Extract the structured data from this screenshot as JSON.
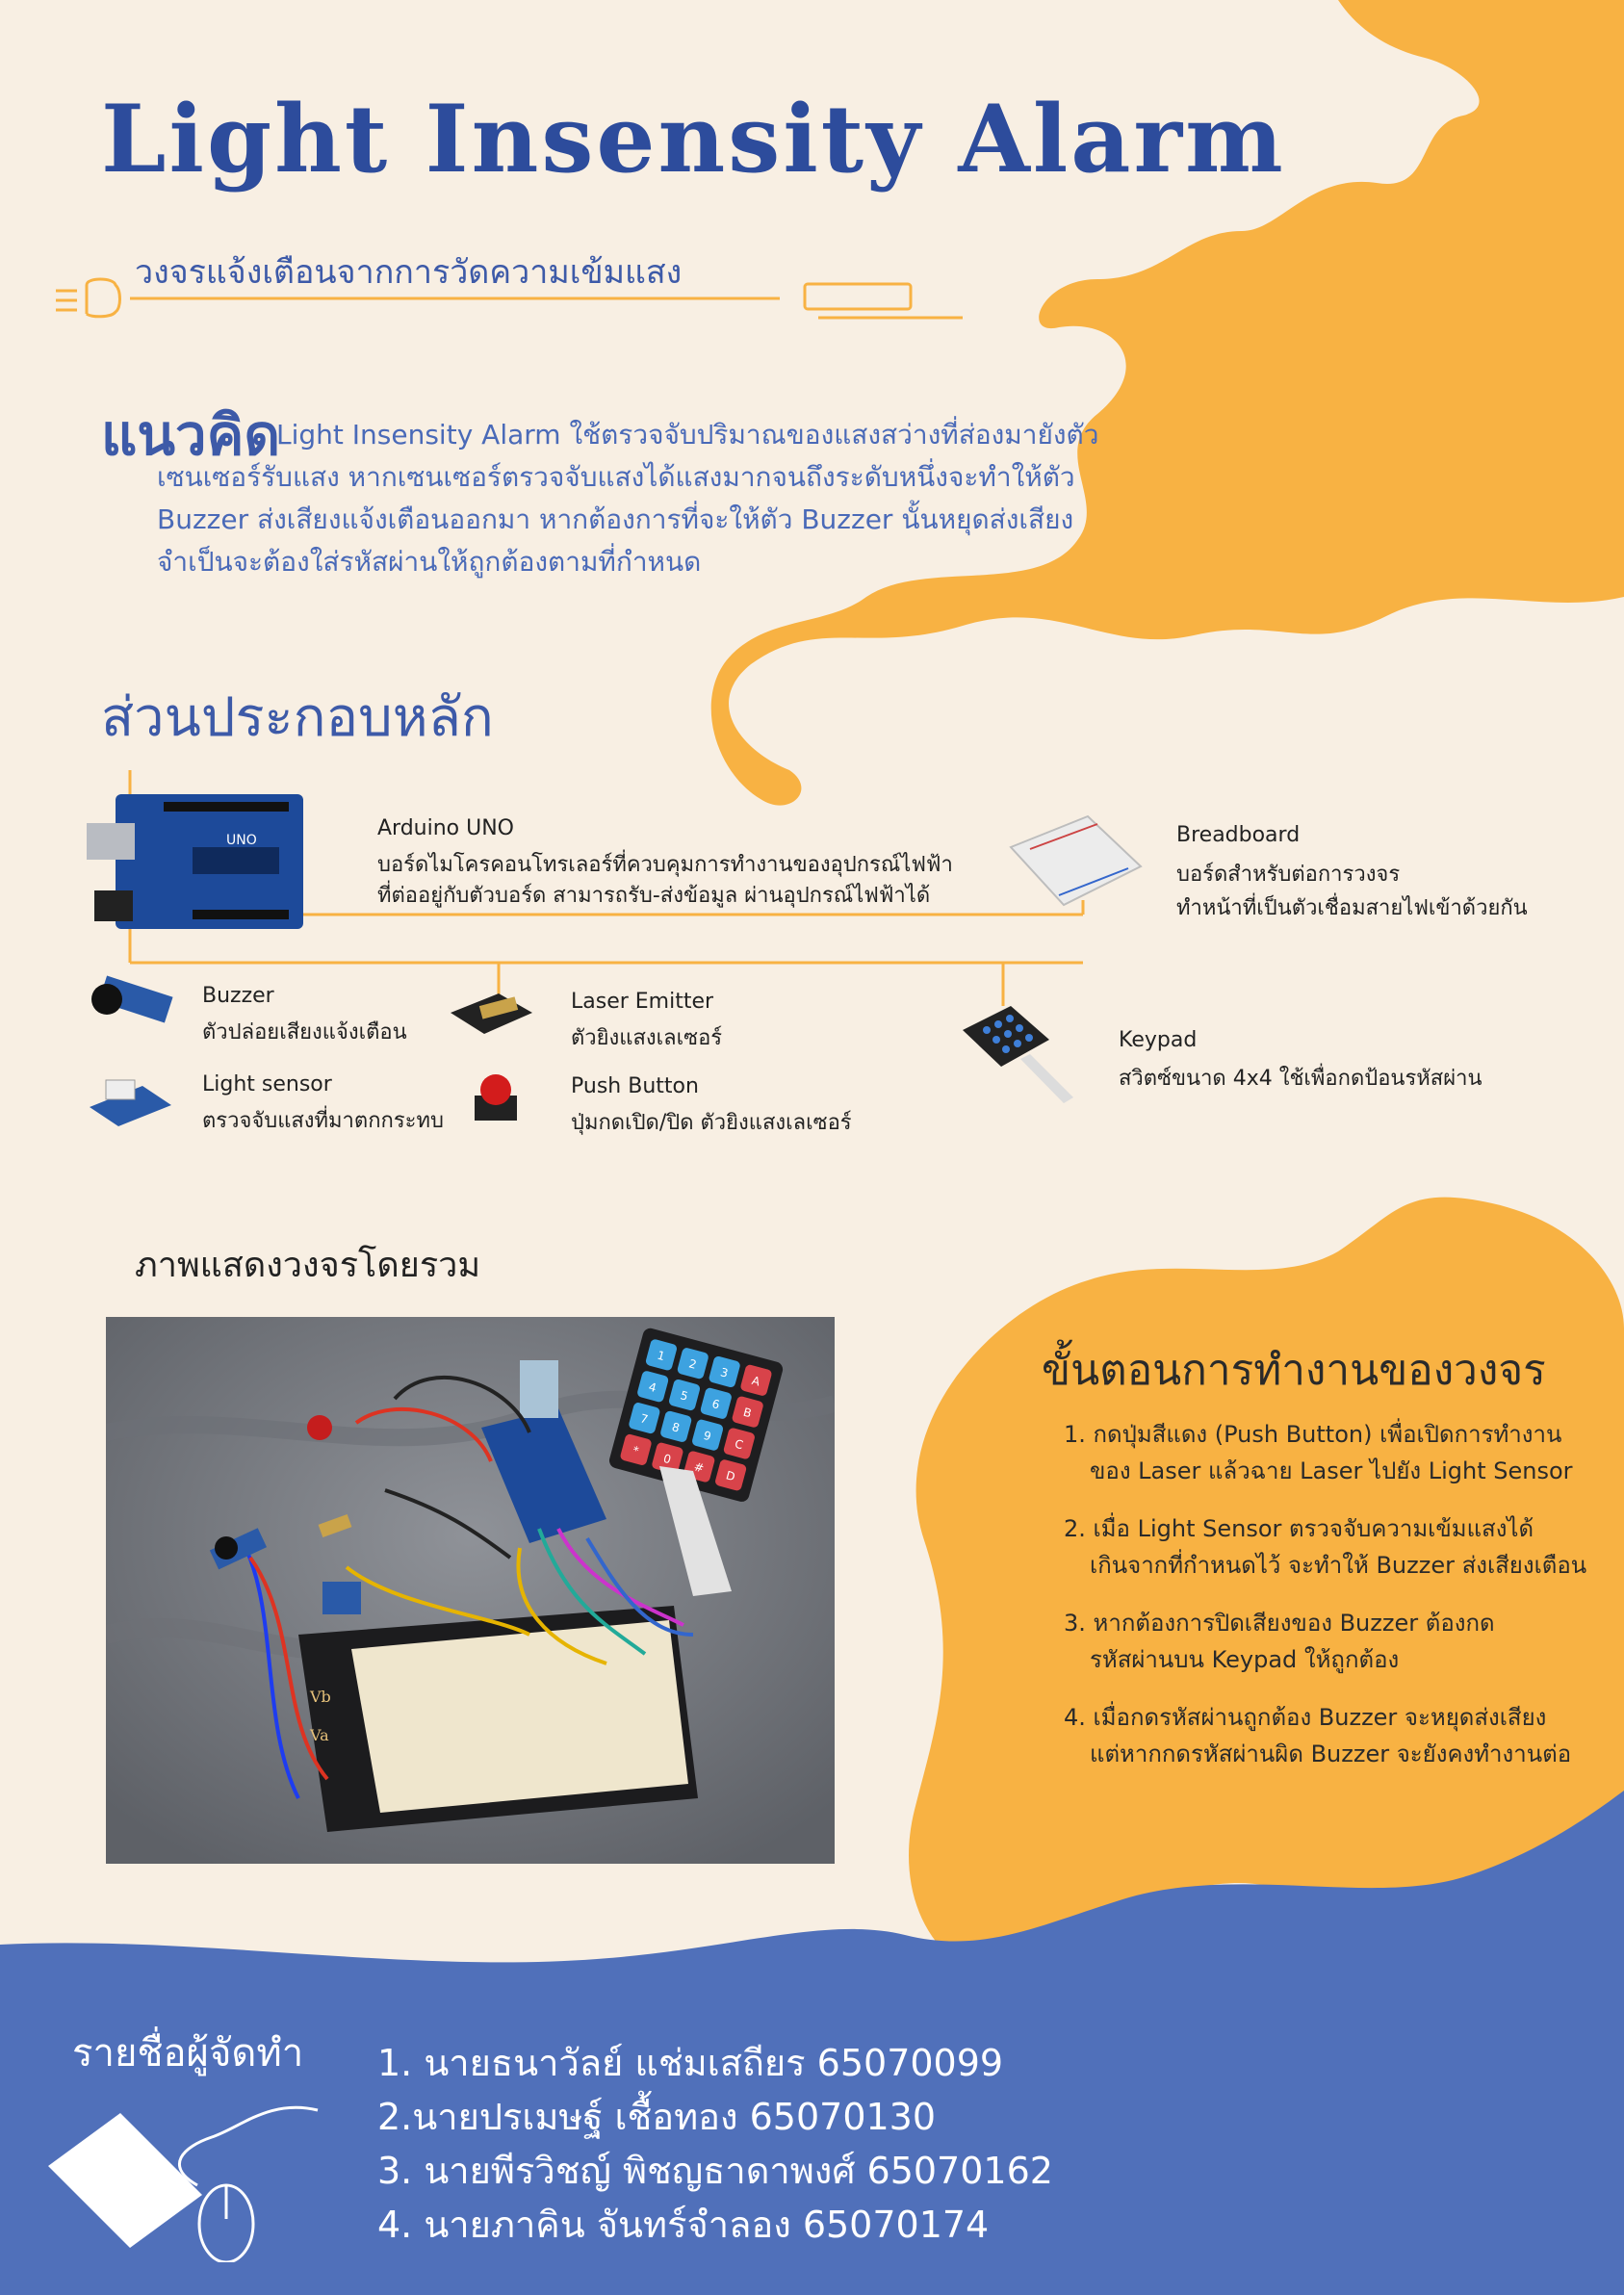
{
  "header": {
    "title": "Light Insensity Alarm",
    "subtitle": "วงจรแจ้งเตือนจากการวัดความเข้มแสง"
  },
  "concept": {
    "heading": "แนวคิด",
    "lines": [
      "Light Insensity Alarm ใช้ตรวจจับปริมาณของแสงสว่างที่ส่องมายังตัว",
      "เซนเซอร์รับแสง หากเซนเซอร์ตรวจจับแสงได้แสงมากจนถึงระดับหนึ่งจะทำให้ตัว",
      "Buzzer ส่งเสียงแจ้งเตือนออกมา หากต้องการที่จะให้ตัว Buzzer นั้นหยุดส่งเสียง",
      "จำเป็นจะต้องใส่รหัสผ่านให้ถูกต้องตามที่กำหนด"
    ]
  },
  "components": {
    "heading": "ส่วนประกอบหลัก",
    "arduino": {
      "name": "Arduino UNO",
      "desc": [
        "บอร์ดไมโครคอนโทรเลอร์ที่ควบคุมการทำงานของอุปกรณ์ไฟฟ้า",
        "ที่ต่ออยู่กับตัวบอร์ด สามารถรับ-ส่งข้อมูล ผ่านอุปกรณ์ไฟฟ้าได้"
      ],
      "board_label": "UNO"
    },
    "breadboard": {
      "name": "Breadboard",
      "desc": [
        "บอร์ดสำหรับต่อการวงจร",
        "ทำหน้าที่เป็นตัวเชื่อมสายไฟเข้าด้วยกัน"
      ]
    },
    "buzzer": {
      "name": "Buzzer",
      "desc": "ตัวปล่อยเสียงแจ้งเตือน"
    },
    "light_sensor": {
      "name": "Light sensor",
      "desc": "ตรวจจับแสงที่มาตกกระทบ"
    },
    "laser": {
      "name": "Laser Emitter",
      "desc": "ตัวยิงแสงเลเซอร์"
    },
    "push_button": {
      "name": "Push Button",
      "desc": "ปุ่มกดเปิด/ปิด ตัวยิงแสงเลเซอร์"
    },
    "keypad": {
      "name": "Keypad",
      "desc": "สวิตซ์ขนาด 4x4 ใช้เพื่อกดป้อนรหัสผ่าน"
    }
  },
  "photo": {
    "heading": "ภาพแสดงวงจรโดยรวม",
    "keypad_keys": [
      "1",
      "2",
      "3",
      "A",
      "4",
      "5",
      "6",
      "B",
      "7",
      "8",
      "9",
      "C",
      "*",
      "0",
      "#",
      "D"
    ],
    "breadboard_marks": [
      "Vb",
      "Va"
    ]
  },
  "steps": {
    "heading": "ขั้นตอนการทำงานของวงจร",
    "items": [
      [
        "1. กดปุ่มสีแดง (Push Button) เพื่อเปิดการทำงาน",
        "ของ Laser แล้วฉาย Laser ไปยัง Light Sensor"
      ],
      [
        "2. เมื่อ Light Sensor ตรวจจับความเข้มแสงได้",
        "เกินจากที่กำหนดไว้ จะทำให้ Buzzer ส่งเสียงเตือน"
      ],
      [
        "3. หากต้องการปิดเสียงของ Buzzer ต้องกด",
        "รหัสผ่านบน Keypad ให้ถูกต้อง"
      ],
      [
        "4. เมื่อกดรหัสผ่านถูกต้อง Buzzer จะหยุดส่งเสียง",
        "แต่หากกดรหัสผ่านผิด Buzzer จะยังคงทำงานต่อ"
      ]
    ]
  },
  "team": {
    "label": "รายชื่อผู้จัดทำ",
    "members": [
      "1.  นายธนาวัลย์ แช่มเสถียร  65070099",
      "2.นายปรเมษฐ์ เชื้อทอง   65070130",
      "3. นายพีรวิชญ์ พิชญธาดาพงศ์  65070162",
      "4. นายภาคิน จันทร์จำลอง    65070174"
    ]
  },
  "colors": {
    "background": "#f8efe3",
    "orange": "#f8b243",
    "blue": "#5070ba",
    "title_blue": "#2d4c9c"
  }
}
